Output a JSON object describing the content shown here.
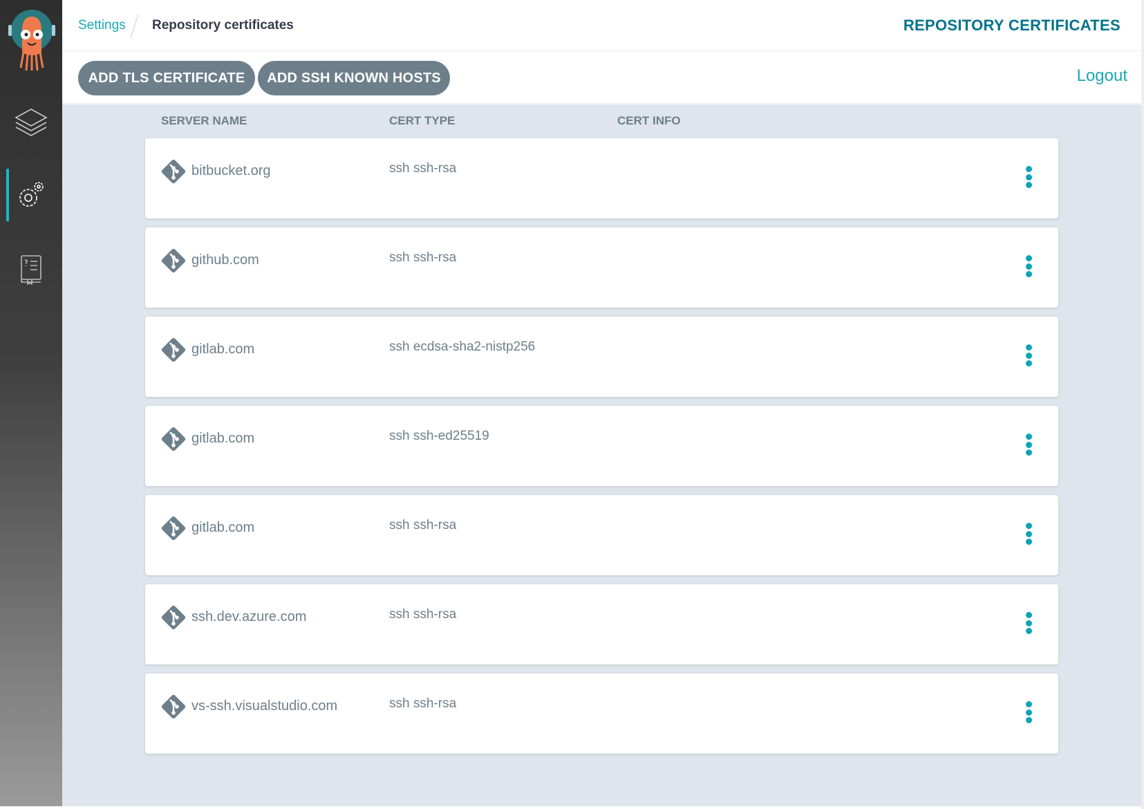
{
  "breadcrumb": {
    "parent": "Settings",
    "current": "Repository certificates"
  },
  "header": {
    "title": "REPOSITORY CERTIFICATES"
  },
  "toolbar": {
    "add_tls": "ADD TLS CERTIFICATE",
    "add_ssh": "ADD SSH KNOWN HOSTS",
    "logout": "Logout"
  },
  "sidebar": {
    "items": [
      {
        "icon": "layers-icon",
        "label": "Applications"
      },
      {
        "icon": "gears-icon",
        "label": "Settings",
        "active": true
      },
      {
        "icon": "docs-icon",
        "label": "Docs"
      }
    ]
  },
  "table": {
    "columns": [
      "SERVER NAME",
      "CERT TYPE",
      "CERT INFO"
    ],
    "rows": [
      {
        "server": "bitbucket.org",
        "type": "ssh ssh-rsa",
        "info": ""
      },
      {
        "server": "github.com",
        "type": "ssh ssh-rsa",
        "info": ""
      },
      {
        "server": "gitlab.com",
        "type": "ssh ecdsa-sha2-nistp256",
        "info": ""
      },
      {
        "server": "gitlab.com",
        "type": "ssh ssh-ed25519",
        "info": ""
      },
      {
        "server": "gitlab.com",
        "type": "ssh ssh-rsa",
        "info": ""
      },
      {
        "server": "ssh.dev.azure.com",
        "type": "ssh ssh-rsa",
        "info": ""
      },
      {
        "server": "vs-ssh.visualstudio.com",
        "type": "ssh ssh-rsa",
        "info": ""
      }
    ]
  },
  "colors": {
    "accent": "#18a8b8",
    "title": "#00738a",
    "button": "#6d7f8b",
    "background": "#dee5ec"
  }
}
